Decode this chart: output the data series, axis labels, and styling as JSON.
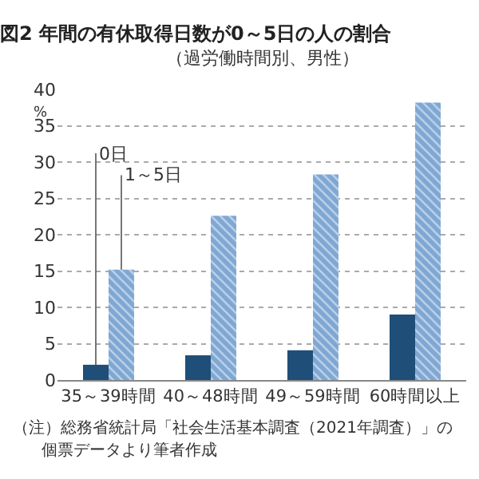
{
  "chart_data": {
    "type": "bar",
    "title": "図2 年間の有休取得日数が0～5日の人の割合",
    "subtitle": "（過労働時間別、男性）",
    "ylabel": "%",
    "categories": [
      "35～39時間",
      "40～48時間",
      "49～59時間",
      "60時間以上"
    ],
    "series": [
      {
        "name": "0日",
        "color": "#1f4e79",
        "values": [
          2.1,
          3.4,
          4.1,
          9.0
        ]
      },
      {
        "name": "1～5日",
        "color": "#7fa7d3",
        "values": [
          15.2,
          22.6,
          28.3,
          38.2
        ]
      }
    ],
    "ylim": [
      0,
      40
    ],
    "yticks": [
      0,
      5,
      10,
      15,
      20,
      25,
      30,
      35,
      40
    ],
    "grid": "y",
    "legend": false,
    "annotations": [
      "（注）総務省統計局「社会生活基本調査（2021年調査）」の",
      "個票データより筆者作成"
    ]
  }
}
